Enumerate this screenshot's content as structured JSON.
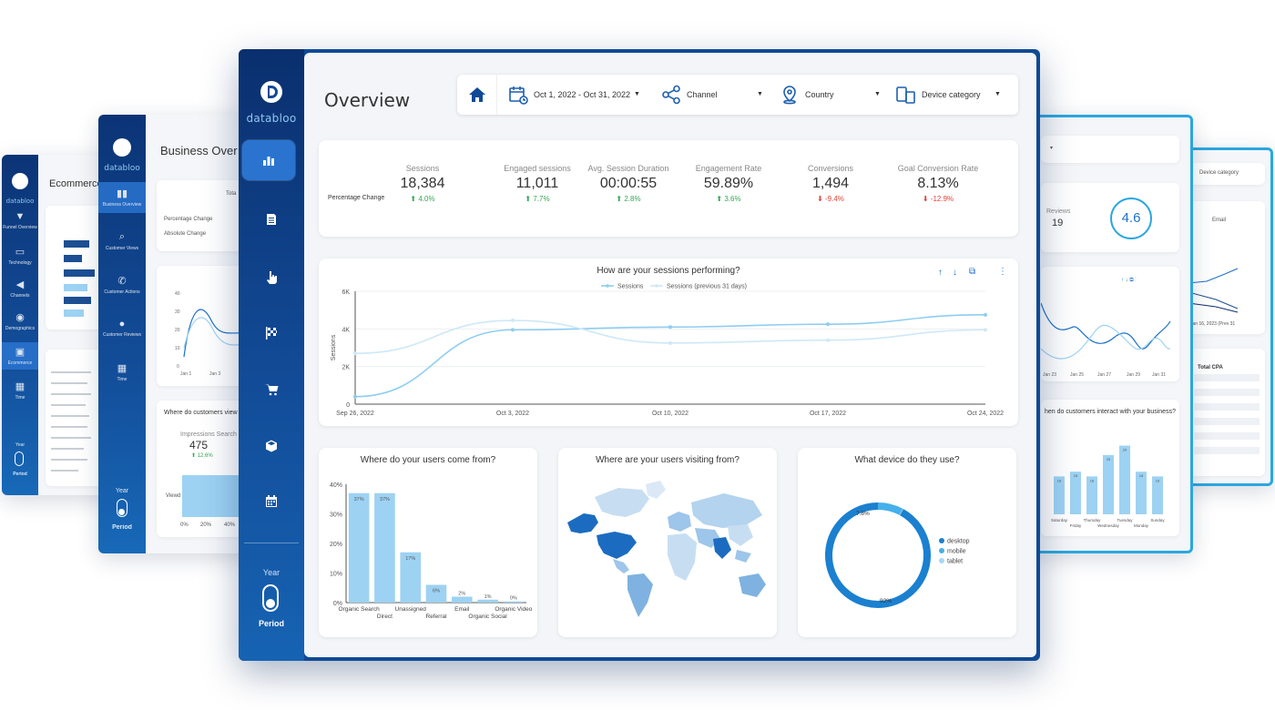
{
  "bg_cards": {
    "left": {
      "logo": "databloo",
      "title": "Ecommerce",
      "nav": [
        "Funnel Overview",
        "Technology",
        "Channels",
        "Demographics",
        "Ecommerce",
        "Time"
      ],
      "year": "Year",
      "period": "Period"
    },
    "middle": {
      "logo": "databloo",
      "title": "Business Over",
      "nav": [
        "Business Overview",
        "Customer Views",
        "Customer Actions",
        "Customer Reviews",
        "Time"
      ],
      "kpi_header": "Tota",
      "rows": [
        "Percentage Change",
        "Absolute Change"
      ],
      "chart_title": "Where do customers view",
      "impressions_label": "Impressions Search",
      "impressions_value": "475",
      "impressions_change": "12.6%",
      "bar_label": "Viewd",
      "bar_ticks": [
        "0%",
        "20%",
        "40%"
      ],
      "line_yticks": [
        "40",
        "30",
        "20",
        "10",
        "0"
      ],
      "line_xticks": [
        "Jan 1",
        "Jan 3"
      ],
      "line_ylabel": "Total Impressions",
      "year": "Year",
      "period": "Period"
    },
    "right_a": {
      "reviews_label": "Reviews",
      "reviews_value": "19",
      "rating": "4.6",
      "xticks": [
        "Jan 23",
        "Jan 25",
        "Jan 27",
        "Jan 29",
        "Jan 31"
      ],
      "bar_title": "hen do customers interact with your business?",
      "bar_days": [
        "Saturday",
        "Friday",
        "Thursday",
        "Wednesday",
        "Tuesday",
        "Monday",
        "Sunday"
      ],
      "bar_values": [
        "16",
        "18",
        "16",
        "25",
        "29",
        "18",
        "16"
      ]
    },
    "right_b": {
      "filter": "Device category",
      "legend": "Email",
      "table_header": "Total CPA",
      "note": "Jan 16, 2023 (Prev 31"
    }
  },
  "sidebar": {
    "logo": "databloo",
    "year_label": "Year",
    "period_label": "Period",
    "nav": [
      {
        "name": "overview",
        "icon": "bar-chart-icon"
      },
      {
        "name": "document",
        "icon": "document-icon"
      },
      {
        "name": "tap",
        "icon": "hand-pointer-icon"
      },
      {
        "name": "goals",
        "icon": "checkered-flag-icon"
      },
      {
        "name": "ecommerce",
        "icon": "cart-icon"
      },
      {
        "name": "products",
        "icon": "box-icon"
      },
      {
        "name": "time",
        "icon": "calendar-icon"
      }
    ]
  },
  "header": {
    "title": "Overview",
    "filters": {
      "date": "Oct 1, 2022 - Oct 31, 2022",
      "channel": "Channel",
      "country": "Country",
      "device": "Device category"
    }
  },
  "kpis": {
    "row_label": "Percentage Change",
    "items": [
      {
        "label": "Sessions",
        "value": "18,384",
        "change": "4.0%",
        "dir": "up"
      },
      {
        "label": "Engaged sessions",
        "value": "11,011",
        "change": "7.7%",
        "dir": "up"
      },
      {
        "label": "Avg. Session Duration",
        "value": "00:00:55",
        "change": "2.8%",
        "dir": "up"
      },
      {
        "label": "Engagement Rate",
        "value": "59.89%",
        "change": "3.6%",
        "dir": "up"
      },
      {
        "label": "Conversions",
        "value": "1,494",
        "change": "-9.4%",
        "dir": "down"
      },
      {
        "label": "Goal Conversion Rate",
        "value": "8.13%",
        "change": "-12.9%",
        "dir": "down"
      }
    ]
  },
  "charts": {
    "sessions_title": "How are your sessions performing?",
    "sources_title": "Where do your users come from?",
    "map_title": "Where are your users visiting from?",
    "device_title": "What device do they use?"
  },
  "colors": {
    "brand_dark": "#0a2f6e",
    "brand": "#0f4a96",
    "accent": "#2a74d0",
    "series_current": "#8ecdf2",
    "series_previous": "#cfe8f8",
    "bar": "#9dd2f3",
    "desktop": "#1b80d0",
    "mobile": "#45b0ea",
    "tablet": "#a8d6f5"
  },
  "chart_data": [
    {
      "type": "line",
      "title": "How are your sessions performing?",
      "ylabel": "Sessions",
      "ylim": [
        0,
        6000
      ],
      "yticks": [
        "0",
        "2K",
        "4K",
        "6K"
      ],
      "x": [
        "Sep 26, 2022",
        "Oct 3, 2022",
        "Oct 10, 2022",
        "Oct 17, 2022",
        "Oct 24, 2022"
      ],
      "series": [
        {
          "name": "Sessions",
          "values": [
            400,
            3950,
            4100,
            4250,
            4750
          ]
        },
        {
          "name": "Sessions (previous 31 days)",
          "values": [
            2700,
            4450,
            3250,
            3400,
            3950
          ]
        }
      ],
      "legend": "top"
    },
    {
      "type": "bar",
      "title": "Where do your users come from?",
      "categories": [
        "Organic Search",
        "Direct",
        "Unassigned",
        "Referral",
        "Email",
        "Organic Social",
        "Organic Video"
      ],
      "values": [
        37,
        37,
        17,
        6,
        2,
        1,
        0.4
      ],
      "labels": [
        "37%",
        "37%",
        "17%",
        "6%",
        "2%",
        "1%",
        "0%"
      ],
      "ylim": [
        0,
        40
      ],
      "yticks": [
        "0%",
        "10%",
        "20%",
        "30%",
        "40%"
      ]
    },
    {
      "type": "pie",
      "title": "What device do they use?",
      "categories": [
        "desktop",
        "mobile",
        "tablet"
      ],
      "values": [
        92,
        7.8,
        0.2
      ],
      "labels": [
        "92%",
        "7.8%",
        ""
      ],
      "legend": "right"
    }
  ]
}
